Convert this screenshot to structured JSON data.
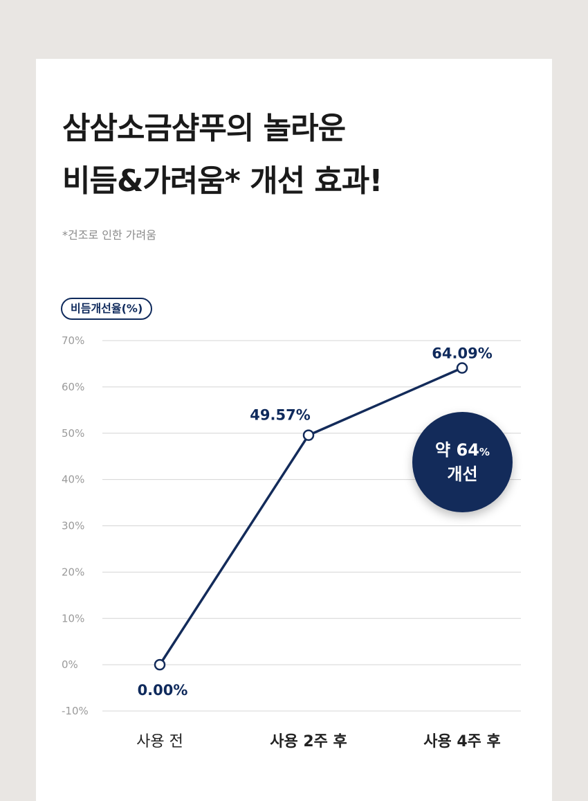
{
  "title": {
    "line1": "삼삼소금샴푸의 놀라운",
    "line2": "비듬&가려움* 개선 효과!"
  },
  "footnote": "*건조로 인한 가려움",
  "colors": {
    "accent": "#132b5a",
    "background": "#e9e6e3",
    "card": "#ffffff"
  },
  "badge": {
    "prefix": "약",
    "value": "64",
    "unit": "%",
    "text": "개선"
  },
  "chart_data": {
    "type": "line",
    "ylabel": "비듬개선율(%)",
    "categories": [
      "사용 전",
      "사용 2주 후",
      "사용 4주 후"
    ],
    "series": [
      {
        "values": [
          0.0,
          49.57,
          64.09
        ]
      }
    ],
    "data_labels": [
      "0.00%",
      "49.57%",
      "64.09%"
    ],
    "ylim": [
      -10,
      70
    ],
    "yticks": [
      70,
      60,
      50,
      40,
      30,
      20,
      10,
      0,
      -10
    ],
    "ytick_labels": [
      "70%",
      "60%",
      "50%",
      "40%",
      "30%",
      "20%",
      "10%",
      "0%",
      "-10%"
    ],
    "grid": true
  }
}
